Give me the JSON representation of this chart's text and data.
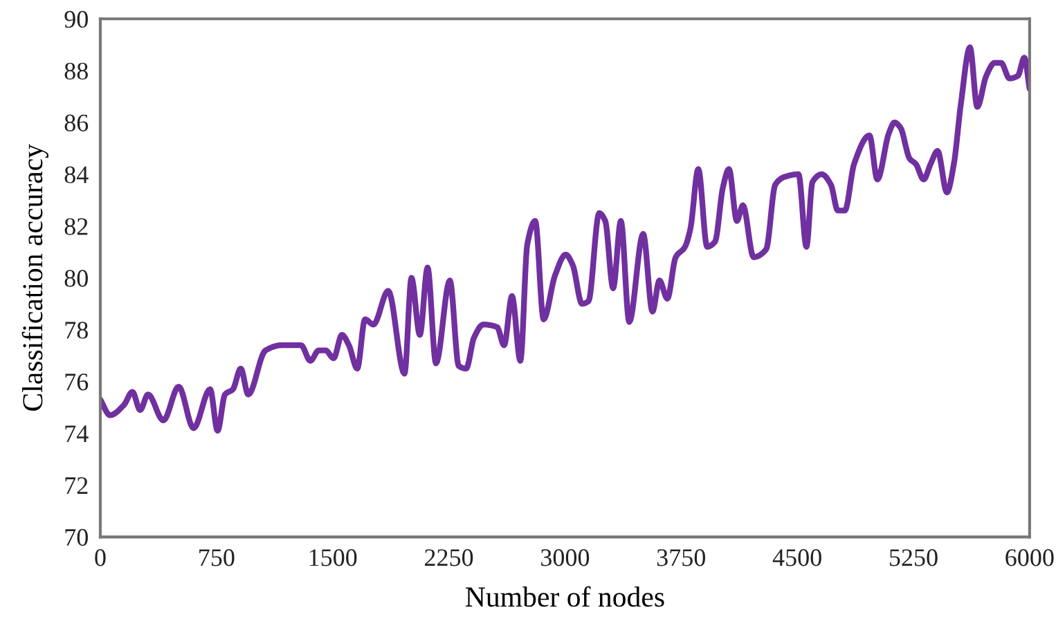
{
  "chart_data": {
    "type": "line",
    "xlabel": "Number of nodes",
    "ylabel": "Classification accuracy",
    "xlim": [
      0,
      6000
    ],
    "ylim": [
      70,
      90
    ],
    "xticks": [
      0,
      750,
      1500,
      2250,
      3000,
      3750,
      4500,
      5250,
      6000
    ],
    "yticks": [
      70,
      72,
      74,
      76,
      78,
      80,
      82,
      84,
      86,
      88,
      90
    ],
    "grid": false,
    "series": [
      {
        "color": "#7030a0",
        "x": [
          0,
          63,
          153,
          207,
          257,
          308,
          407,
          506,
          602,
          709,
          757,
          805,
          856,
          907,
          955,
          1066,
          1170,
          1296,
          1356,
          1410,
          1455,
          1506,
          1560,
          1605,
          1659,
          1709,
          1763,
          1859,
          1964,
          2009,
          2063,
          2113,
          2167,
          2257,
          2314,
          2362,
          2413,
          2473,
          2562,
          2607,
          2658,
          2712,
          2757,
          2808,
          2862,
          2936,
          3005,
          3050,
          3110,
          3152,
          3221,
          3260,
          3311,
          3361,
          3415,
          3505,
          3565,
          3610,
          3661,
          3715,
          3775,
          3810,
          3861,
          3918,
          3969,
          4020,
          4059,
          4110,
          4149,
          4218,
          4299,
          4358,
          4418,
          4508,
          4559,
          4598,
          4658,
          4717,
          4762,
          4807,
          4867,
          4966,
          5017,
          5092,
          5128,
          5166,
          5226,
          5265,
          5316,
          5361,
          5406,
          5466,
          5511,
          5556,
          5615,
          5662,
          5720,
          5774,
          5816,
          5870,
          5924,
          5966,
          6000
        ],
        "values": [
          75.3,
          74.7,
          75.1,
          75.6,
          74.9,
          75.5,
          74.5,
          75.8,
          74.2,
          75.7,
          74.1,
          75.5,
          75.7,
          76.5,
          75.5,
          77.2,
          77.4,
          77.4,
          76.8,
          77.2,
          77.2,
          76.9,
          77.8,
          77.4,
          76.5,
          78.4,
          78.2,
          79.5,
          76.3,
          80.0,
          77.8,
          80.4,
          76.7,
          79.9,
          76.6,
          76.5,
          77.7,
          78.2,
          78.1,
          77.4,
          79.3,
          76.8,
          81.3,
          82.2,
          78.4,
          80.1,
          80.9,
          80.5,
          79.0,
          79.1,
          82.5,
          82.2,
          79.6,
          82.2,
          78.3,
          81.7,
          78.7,
          79.9,
          79.2,
          80.8,
          81.2,
          81.9,
          84.2,
          81.2,
          81.4,
          83.5,
          84.2,
          82.2,
          82.8,
          80.8,
          81.1,
          83.6,
          83.9,
          84.0,
          81.2,
          83.7,
          84.0,
          83.6,
          82.6,
          82.6,
          84.4,
          85.5,
          83.8,
          85.6,
          86.0,
          85.8,
          84.6,
          84.4,
          83.8,
          84.4,
          84.9,
          83.3,
          84.4,
          86.7,
          88.9,
          86.6,
          87.8,
          88.3,
          88.3,
          87.7,
          87.8,
          88.5,
          87.3
        ]
      }
    ]
  }
}
